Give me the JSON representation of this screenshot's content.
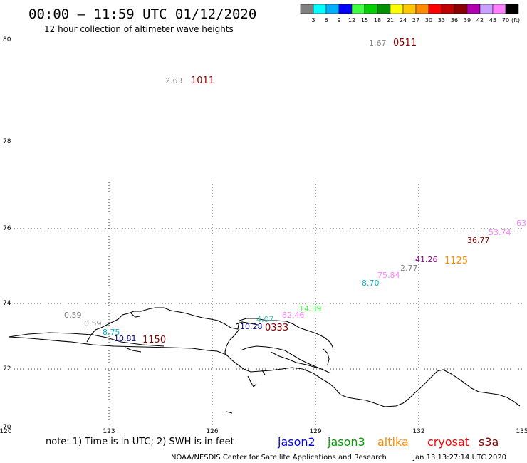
{
  "header": {
    "title": "00:00 – 11:59 UTC 01/12/2020",
    "subtitle": "12 hour collection of altimeter wave heights"
  },
  "scale": {
    "colors": [
      "#808080",
      "#00ffff",
      "#00b0ff",
      "#0000ff",
      "#40ff40",
      "#00d000",
      "#009000",
      "#ffff00",
      "#ffc800",
      "#ff8c00",
      "#ff0000",
      "#c00000",
      "#8b0000",
      "#b000b0",
      "#c8a0ff",
      "#ff80ff",
      "#000000"
    ],
    "labels": [
      "3",
      "6",
      "9",
      "12",
      "15",
      "18",
      "21",
      "24",
      "27",
      "30",
      "33",
      "36",
      "39",
      "42",
      "45",
      "70",
      "(ft)"
    ]
  },
  "axes": {
    "lon_ticks": [
      "120",
      "123",
      "126",
      "129",
      "132",
      "135"
    ],
    "lat_ticks": [
      "80",
      "78",
      "76",
      "74",
      "72",
      "70"
    ]
  },
  "observations": [
    {
      "value": "1.67",
      "color": "#808080"
    },
    {
      "value": "2.63",
      "color": "#808080"
    },
    {
      "value": "0.59",
      "color": "#808080"
    },
    {
      "value": "0.59",
      "color": "#808080"
    },
    {
      "value": "8.75",
      "color": "#00b0d0"
    },
    {
      "value": "10.81",
      "color": "#00008b"
    },
    {
      "value": "10.28",
      "color": "#00008b"
    },
    {
      "value": "4.07",
      "color": "#40d0c0"
    },
    {
      "value": "62.46",
      "color": "#ff80ff"
    },
    {
      "value": "14.39",
      "color": "#40ff40"
    },
    {
      "value": "8.70",
      "color": "#00b0d0"
    },
    {
      "value": "75.84",
      "color": "#ff80ff"
    },
    {
      "value": "2.77",
      "color": "#808080"
    },
    {
      "value": "41.26",
      "color": "#8b008b"
    },
    {
      "value": "36.77",
      "color": "#8b0000"
    },
    {
      "value": "53.74",
      "color": "#ff80ff"
    },
    {
      "value": "63",
      "color": "#ff80ff"
    }
  ],
  "pass_times": [
    {
      "time": "0511",
      "color": "#8b0000"
    },
    {
      "time": "1011",
      "color": "#8b0000"
    },
    {
      "time": "1150",
      "color": "#8b0000"
    },
    {
      "time": "0333",
      "color": "#8b0000"
    },
    {
      "time": "1125",
      "color": "#ff8c00"
    }
  ],
  "footer": {
    "note": "note: 1) Time is in UTC; 2) SWH is in feet",
    "satellites": [
      {
        "name": "jason2",
        "color": "#0000ff"
      },
      {
        "name": "jason3",
        "color": "#00a000"
      },
      {
        "name": "altika",
        "color": "#ff8c00"
      },
      {
        "name": "cryosat",
        "color": "#ff0000"
      },
      {
        "name": "s3a",
        "color": "#8b0000"
      }
    ],
    "credit": "NOAA/NESDIS Center for Satellite Applications and Research",
    "timestamp": "Jan 13 13:27:14 UTC 2020"
  }
}
